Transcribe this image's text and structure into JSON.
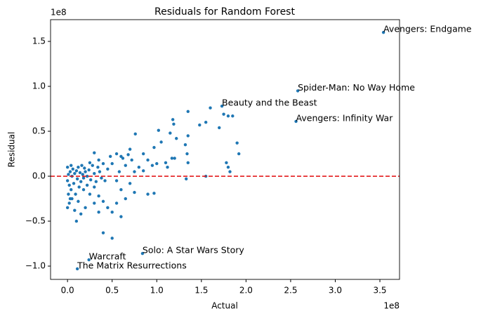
{
  "chart_data": {
    "type": "scatter",
    "title": "Residuals for Random Forest",
    "x_label": "Actual",
    "y_label": "Residual",
    "x_offset_label": "1e8",
    "y_offset_label": "1e8",
    "xlim": [
      -0.19,
      3.72
    ],
    "ylim": [
      -1.148,
      1.742
    ],
    "xticks": [
      {
        "value": 0,
        "label": "0.0"
      },
      0.5,
      {
        "value": 1,
        "label": "1.0"
      },
      1.5,
      {
        "value": 2,
        "label": "2.0"
      },
      2.5,
      {
        "value": 3,
        "label": "3.0"
      },
      3.5
    ],
    "yticks": [
      {
        "value": -1,
        "label": "−1.0"
      },
      {
        "value": -0.5,
        "label": "−0.5"
      },
      {
        "value": 0,
        "label": "0.0"
      },
      0.5,
      {
        "value": 1,
        "label": "1.0"
      },
      1.5
    ],
    "reference_line": {
      "y": 0,
      "color": "#e41a1c"
    },
    "series": [
      {
        "color": "#1f77b4",
        "x": [
          3.54,
          2.58,
          1.73,
          2.56,
          0.84,
          0.24,
          0.11,
          1.35,
          1.18,
          1.19,
          1.6,
          1.75,
          1.8,
          1.85,
          1.55,
          1.48,
          1.7,
          1.35,
          0.76,
          1.02,
          1.15,
          1.22,
          1.32,
          1.9,
          1.92,
          1.34,
          1.05,
          0.97,
          1.2,
          1.17,
          1.1,
          0.85,
          0.9,
          0.95,
          1.0,
          1.35,
          1.12,
          1.78,
          1.8,
          1.82,
          1.55,
          1.33,
          0.7,
          0.68,
          0.6,
          0.55,
          0.48,
          0.62,
          0.72,
          0.8,
          0.85,
          0.75,
          0.65,
          0.5,
          0.45,
          0.58,
          0.9,
          0.97,
          0.75,
          0.6,
          0.65,
          0.55,
          0.45,
          0.5,
          0.6,
          0.4,
          0.5,
          0.35,
          0.3,
          0.25,
          0.2,
          0.15,
          0.1,
          0.08,
          0.05,
          0.12,
          0.18,
          0.22,
          0.3,
          0.35,
          0.4,
          0.7,
          0.55,
          0.42,
          0.0,
          0.01,
          0.02,
          0.03,
          0.04,
          0.05,
          0.06,
          0.07,
          0.08,
          0.09,
          0.1,
          0.11,
          0.12,
          0.13,
          0.14,
          0.15,
          0.16,
          0.17,
          0.18,
          0.19,
          0.2,
          0.22,
          0.24,
          0.26,
          0.28,
          0.3,
          0.32,
          0.34,
          0.36,
          0.38,
          0.02,
          0.01,
          0.0,
          0.03,
          0.0,
          0.04,
          0.25,
          0.3,
          0.35,
          0.4
        ],
        "y": [
          1.6,
          0.95,
          0.78,
          0.61,
          -0.86,
          -0.93,
          -1.03,
          0.72,
          0.63,
          0.58,
          0.76,
          0.69,
          0.67,
          0.67,
          0.6,
          0.57,
          0.54,
          0.45,
          0.47,
          0.51,
          0.48,
          0.42,
          0.35,
          0.37,
          0.25,
          0.25,
          0.38,
          0.32,
          0.2,
          0.2,
          0.15,
          0.25,
          0.18,
          0.12,
          0.14,
          0.15,
          0.1,
          0.15,
          0.1,
          0.05,
          0.0,
          -0.03,
          0.3,
          0.24,
          0.22,
          0.25,
          0.22,
          0.2,
          0.18,
          0.1,
          0.06,
          0.05,
          0.12,
          0.14,
          0.08,
          0.05,
          -0.2,
          -0.19,
          -0.18,
          -0.15,
          -0.25,
          -0.3,
          -0.35,
          -0.4,
          -0.45,
          -0.63,
          -0.69,
          -0.4,
          -0.3,
          -0.2,
          -0.35,
          -0.42,
          -0.5,
          -0.38,
          -0.25,
          -0.28,
          -0.15,
          -0.1,
          -0.12,
          -0.22,
          -0.28,
          -0.08,
          -0.05,
          -0.05,
          -0.05,
          0.02,
          -0.1,
          0.05,
          -0.15,
          0.0,
          0.08,
          -0.08,
          0.03,
          -0.2,
          0.06,
          -0.03,
          0.1,
          -0.12,
          0.04,
          -0.06,
          0.12,
          0.02,
          -0.02,
          0.09,
          0.05,
          0.0,
          0.07,
          -0.04,
          0.12,
          0.03,
          -0.06,
          0.1,
          0.05,
          -0.02,
          -0.3,
          -0.2,
          -0.35,
          -0.25,
          0.1,
          0.12,
          0.15,
          0.26,
          0.18,
          0.14
        ]
      }
    ],
    "annotations": [
      {
        "text": "Avengers: Endgame",
        "x": 3.54,
        "y": 1.6
      },
      {
        "text": "Spider-Man: No Way Home",
        "x": 2.58,
        "y": 0.95
      },
      {
        "text": "Beauty and the Beast",
        "x": 1.73,
        "y": 0.78
      },
      {
        "text": "Avengers: Infinity War",
        "x": 2.56,
        "y": 0.61
      },
      {
        "text": "Solo: A Star Wars Story",
        "x": 0.84,
        "y": -0.86
      },
      {
        "text": "Warcraft",
        "x": 0.24,
        "y": -0.93
      },
      {
        "text": "The Matrix Resurrections",
        "x": 0.11,
        "y": -1.03
      }
    ]
  }
}
